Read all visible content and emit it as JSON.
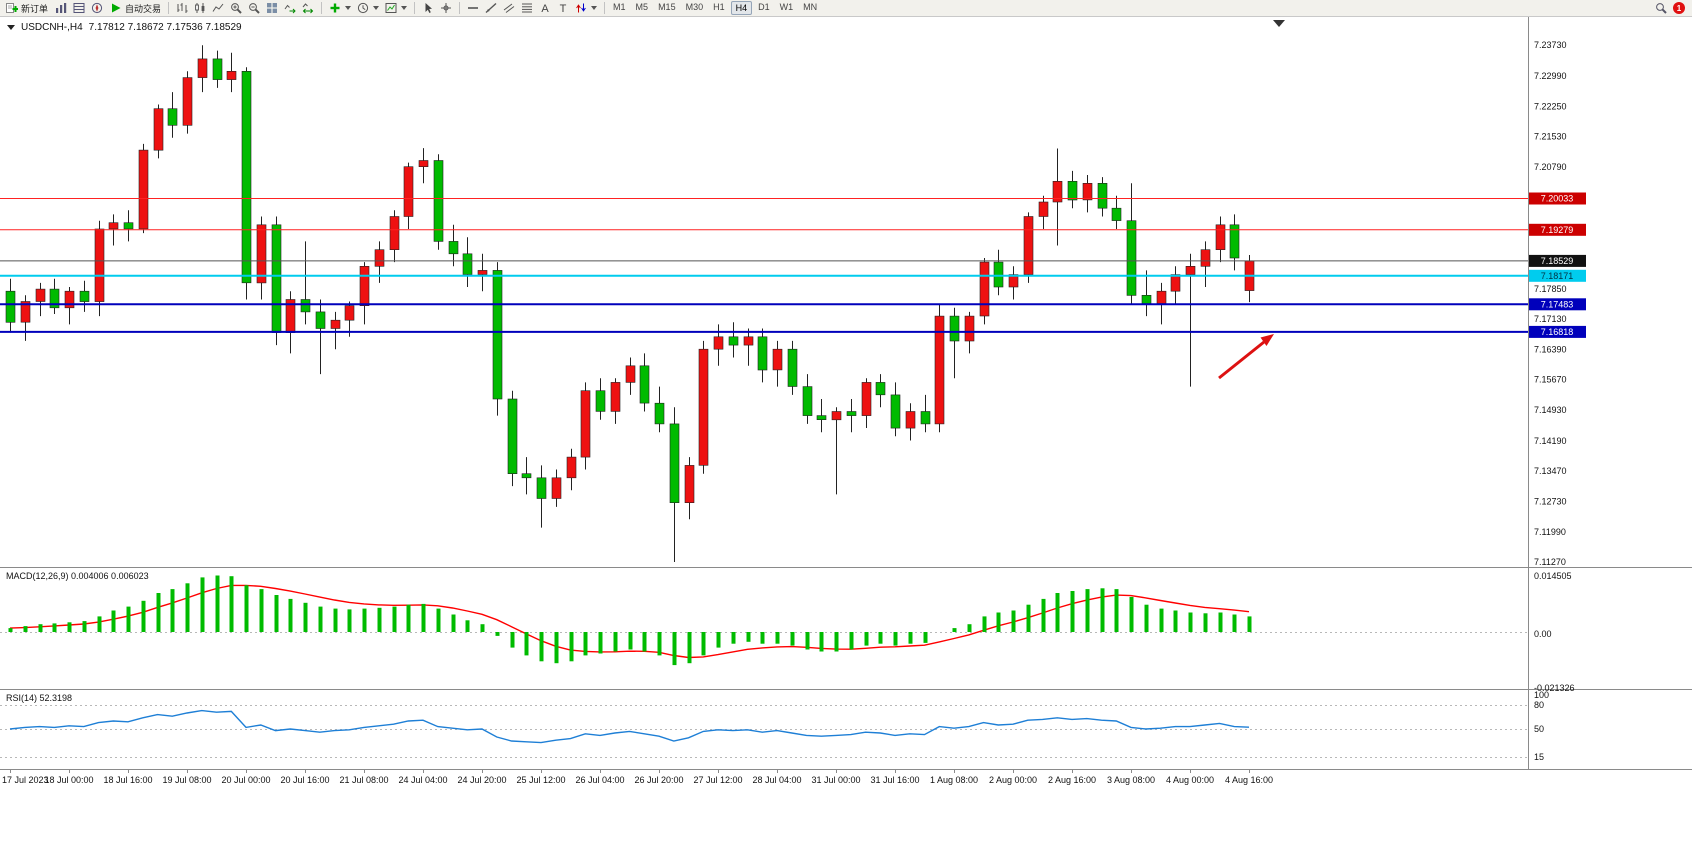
{
  "toolbar": {
    "new_order": {
      "label": "新订单"
    },
    "autotrading": {
      "label": "自动交易"
    },
    "left_icons": [
      "market-watch",
      "data-window",
      "navigator"
    ],
    "chart_icons": [
      "bar-chart",
      "candle-chart",
      "line-chart",
      "zoom-in",
      "zoom-out",
      "tile-windows",
      "auto-scroll",
      "chart-shift"
    ],
    "insert_icons": [
      "indicators",
      "periods",
      "templates"
    ],
    "cursor_icons": [
      "cursor",
      "crosshair"
    ],
    "draw_icons": [
      "hline",
      "trendline",
      "equidistant-channel",
      "fibonacci",
      "text",
      "text-label",
      "arrows"
    ],
    "with_caret": [
      "indicators",
      "periods",
      "templates",
      "arrows"
    ],
    "timeframes": [
      "M1",
      "M5",
      "M15",
      "M30",
      "H1",
      "H4",
      "D1",
      "W1",
      "MN"
    ],
    "active_timeframe": "H4",
    "right": {
      "notification_count": "1"
    }
  },
  "chart": {
    "title_symbol": "USDCNH-,H4",
    "title_ohlc": "7.17812 7.18672 7.17536 7.18529",
    "macd_label": "MACD(12,26,9) 0.004006 0.006023",
    "rsi_label": "RSI(14) 52.3198",
    "price_axis_labels": [
      "7.23730",
      "7.22990",
      "7.22250",
      "7.21530",
      "7.20790",
      "7.17850",
      "7.17130",
      "7.16390",
      "7.15670",
      "7.14930",
      "7.14190",
      "7.13470",
      "7.12730",
      "7.11990",
      "7.11270"
    ],
    "macd_axis_labels": [
      "0.014505",
      "0.00",
      "-0.021326"
    ],
    "rsi_axis_labels": [
      "100",
      "80",
      "50",
      "15"
    ],
    "hlines": [
      {
        "price": 7.20033,
        "label": "7.20033",
        "color": "#ff2222",
        "width": 1,
        "badge_bg": "#cc0000",
        "badge_fg": "#ffffff"
      },
      {
        "price": 7.19279,
        "label": "7.19279",
        "color": "#ff2222",
        "width": 1,
        "badge_bg": "#cc0000",
        "badge_fg": "#ffffff"
      },
      {
        "price": 7.18529,
        "label": "7.18529",
        "color": "#555555",
        "width": 1,
        "badge_bg": "#111111",
        "badge_fg": "#ffffff"
      },
      {
        "price": 7.18171,
        "label": "7.18171",
        "color": "#00ccee",
        "width": 2,
        "badge_bg": "#00ccee",
        "badge_fg": "#003344"
      },
      {
        "price": 7.17483,
        "label": "7.17483",
        "color": "#0000bb",
        "width": 2,
        "badge_bg": "#0000bb",
        "badge_fg": "#ffffff"
      },
      {
        "price": 7.16818,
        "label": "7.16818",
        "color": "#0000bb",
        "width": 2,
        "badge_bg": "#0000bb",
        "badge_fg": "#ffffff"
      }
    ],
    "time_labels": [
      "17 Jul 2023",
      "18 Jul 00:00",
      "18 Jul 16:00",
      "19 Jul 08:00",
      "20 Jul 00:00",
      "20 Jul 16:00",
      "21 Jul 08:00",
      "24 Jul 04:00",
      "24 Jul 20:00",
      "25 Jul 12:00",
      "26 Jul 04:00",
      "26 Jul 20:00",
      "27 Jul 12:00",
      "28 Jul 04:00",
      "31 Jul 00:00",
      "31 Jul 16:00",
      "1 Aug 08:00",
      "2 Aug 00:00",
      "2 Aug 16:00",
      "3 Aug 08:00",
      "4 Aug 00:00",
      "4 Aug 16:00"
    ],
    "colors": {
      "bull": "#ee1111",
      "bear": "#00bb00",
      "wick": "#222222",
      "macd_hist": "#00bb00",
      "macd_signal": "#ff0000",
      "rsi_line": "#1e7fd6",
      "arrow": "#dd1111",
      "grid_dash": "#b8b8b8",
      "separator": "#8a8a8a",
      "axis_text": "#111111"
    }
  },
  "chart_data": {
    "type": "candlestick",
    "symbol": "USDCNH",
    "timeframe": "H4",
    "title": "USDCNH-,H4",
    "ohlc_current": {
      "open": 7.17812,
      "high": 7.18672,
      "low": 7.17536,
      "close": 7.18529
    },
    "price_range": [
      7.1115,
      7.2441
    ],
    "macd_range": [
      -0.021326,
      0.014505
    ],
    "rsi_range": [
      0,
      100
    ],
    "rsi_current": 52.3198,
    "macd_current": 0.004006,
    "macd_signal_current": 0.006023,
    "candles": [
      [
        7.178,
        7.181,
        7.168,
        7.1705
      ],
      [
        7.1705,
        7.177,
        7.166,
        7.1755
      ],
      [
        7.1755,
        7.18,
        7.172,
        7.1785
      ],
      [
        7.1785,
        7.181,
        7.1725,
        7.174
      ],
      [
        7.174,
        7.179,
        7.17,
        7.178
      ],
      [
        7.178,
        7.1805,
        7.173,
        7.1755
      ],
      [
        7.1755,
        7.195,
        7.172,
        7.193
      ],
      [
        7.193,
        7.1965,
        7.189,
        7.1945
      ],
      [
        7.1945,
        7.1975,
        7.19,
        7.193
      ],
      [
        7.193,
        7.2135,
        7.192,
        7.212
      ],
      [
        7.212,
        7.223,
        7.21,
        7.222
      ],
      [
        7.222,
        7.226,
        7.215,
        7.218
      ],
      [
        7.218,
        7.231,
        7.216,
        7.2295
      ],
      [
        7.2295,
        7.2373,
        7.226,
        7.234
      ],
      [
        7.234,
        7.236,
        7.227,
        7.229
      ],
      [
        7.229,
        7.2355,
        7.226,
        7.231
      ],
      [
        7.231,
        7.232,
        7.176,
        7.18
      ],
      [
        7.18,
        7.196,
        7.176,
        7.194
      ],
      [
        7.194,
        7.196,
        7.165,
        7.168
      ],
      [
        7.168,
        7.178,
        7.163,
        7.176
      ],
      [
        7.176,
        7.19,
        7.17,
        7.173
      ],
      [
        7.173,
        7.176,
        7.158,
        7.169
      ],
      [
        7.169,
        7.173,
        7.164,
        7.171
      ],
      [
        7.171,
        7.1755,
        7.167,
        7.1745
      ],
      [
        7.1745,
        7.185,
        7.17,
        7.184
      ],
      [
        7.184,
        7.19,
        7.18,
        7.188
      ],
      [
        7.188,
        7.1975,
        7.185,
        7.196
      ],
      [
        7.196,
        7.209,
        7.193,
        7.208
      ],
      [
        7.208,
        7.2125,
        7.204,
        7.2095
      ],
      [
        7.2095,
        7.211,
        7.188,
        7.19
      ],
      [
        7.19,
        7.194,
        7.184,
        7.187
      ],
      [
        7.187,
        7.191,
        7.179,
        7.182
      ],
      [
        7.182,
        7.187,
        7.178,
        7.183
      ],
      [
        7.183,
        7.185,
        7.148,
        7.152
      ],
      [
        7.152,
        7.154,
        7.131,
        7.134
      ],
      [
        7.134,
        7.138,
        7.129,
        7.133
      ],
      [
        7.133,
        7.136,
        7.121,
        7.128
      ],
      [
        7.128,
        7.135,
        7.126,
        7.133
      ],
      [
        7.133,
        7.14,
        7.13,
        7.138
      ],
      [
        7.138,
        7.156,
        7.135,
        7.154
      ],
      [
        7.154,
        7.157,
        7.147,
        7.149
      ],
      [
        7.149,
        7.157,
        7.146,
        7.156
      ],
      [
        7.156,
        7.162,
        7.153,
        7.16
      ],
      [
        7.16,
        7.163,
        7.149,
        7.151
      ],
      [
        7.151,
        7.155,
        7.144,
        7.146
      ],
      [
        7.146,
        7.15,
        7.1127,
        7.127
      ],
      [
        7.127,
        7.138,
        7.123,
        7.136
      ],
      [
        7.136,
        7.166,
        7.134,
        7.164
      ],
      [
        7.164,
        7.17,
        7.16,
        7.167
      ],
      [
        7.167,
        7.1705,
        7.162,
        7.165
      ],
      [
        7.165,
        7.169,
        7.16,
        7.167
      ],
      [
        7.167,
        7.169,
        7.156,
        7.159
      ],
      [
        7.159,
        7.166,
        7.155,
        7.164
      ],
      [
        7.164,
        7.166,
        7.153,
        7.155
      ],
      [
        7.155,
        7.158,
        7.146,
        7.148
      ],
      [
        7.148,
        7.152,
        7.144,
        7.147
      ],
      [
        7.147,
        7.15,
        7.129,
        7.149
      ],
      [
        7.149,
        7.152,
        7.144,
        7.148
      ],
      [
        7.148,
        7.157,
        7.145,
        7.156
      ],
      [
        7.156,
        7.158,
        7.15,
        7.153
      ],
      [
        7.153,
        7.156,
        7.143,
        7.145
      ],
      [
        7.145,
        7.151,
        7.142,
        7.149
      ],
      [
        7.149,
        7.153,
        7.144,
        7.146
      ],
      [
        7.146,
        7.175,
        7.144,
        7.172
      ],
      [
        7.172,
        7.174,
        7.157,
        7.166
      ],
      [
        7.166,
        7.173,
        7.163,
        7.172
      ],
      [
        7.172,
        7.186,
        7.17,
        7.185
      ],
      [
        7.185,
        7.188,
        7.177,
        7.179
      ],
      [
        7.179,
        7.184,
        7.176,
        7.182
      ],
      [
        7.182,
        7.197,
        7.18,
        7.196
      ],
      [
        7.196,
        7.201,
        7.193,
        7.1995
      ],
      [
        7.1995,
        7.2124,
        7.189,
        7.2045
      ],
      [
        7.2045,
        7.207,
        7.198,
        7.2
      ],
      [
        7.2,
        7.206,
        7.197,
        7.204
      ],
      [
        7.204,
        7.2055,
        7.196,
        7.198
      ],
      [
        7.198,
        7.201,
        7.193,
        7.195
      ],
      [
        7.195,
        7.204,
        7.175,
        7.177
      ],
      [
        7.177,
        7.183,
        7.172,
        7.175
      ],
      [
        7.175,
        7.18,
        7.17,
        7.178
      ],
      [
        7.178,
        7.184,
        7.175,
        7.182
      ],
      [
        7.182,
        7.187,
        7.155,
        7.184
      ],
      [
        7.184,
        7.19,
        7.179,
        7.188
      ],
      [
        7.188,
        7.196,
        7.185,
        7.194
      ],
      [
        7.194,
        7.1965,
        7.183,
        7.186
      ],
      [
        7.17812,
        7.18672,
        7.17536,
        7.18529
      ]
    ],
    "macd_hist": [
      0.001,
      0.0015,
      0.002,
      0.0022,
      0.0025,
      0.0028,
      0.004,
      0.0055,
      0.0065,
      0.008,
      0.01,
      0.011,
      0.0125,
      0.014,
      0.0145,
      0.0143,
      0.012,
      0.011,
      0.0095,
      0.0085,
      0.0075,
      0.0065,
      0.006,
      0.0058,
      0.006,
      0.0062,
      0.0065,
      0.007,
      0.0072,
      0.006,
      0.0045,
      0.003,
      0.002,
      -0.001,
      -0.004,
      -0.006,
      -0.0075,
      -0.008,
      -0.0075,
      -0.006,
      -0.0055,
      -0.005,
      -0.0045,
      -0.005,
      -0.006,
      -0.0085,
      -0.008,
      -0.006,
      -0.004,
      -0.003,
      -0.0025,
      -0.003,
      -0.003,
      -0.0035,
      -0.0045,
      -0.005,
      -0.005,
      -0.0045,
      -0.0035,
      -0.003,
      -0.0035,
      -0.003,
      -0.0028,
      0.0,
      0.001,
      0.002,
      0.004,
      0.005,
      0.0055,
      0.007,
      0.0085,
      0.01,
      0.0105,
      0.011,
      0.0112,
      0.011,
      0.009,
      0.007,
      0.006,
      0.0055,
      0.005,
      0.0048,
      0.005,
      0.0045,
      0.004
    ],
    "rsi": [
      50,
      52,
      53,
      52,
      54,
      53,
      58,
      60,
      59,
      64,
      68,
      66,
      70,
      73,
      71,
      72,
      52,
      55,
      48,
      50,
      48,
      46,
      48,
      49,
      52,
      54,
      56,
      60,
      61,
      53,
      51,
      49,
      50,
      40,
      35,
      34,
      33,
      36,
      38,
      44,
      42,
      45,
      47,
      44,
      41,
      35,
      39,
      47,
      49,
      48,
      49,
      46,
      48,
      45,
      42,
      41,
      42,
      43,
      46,
      45,
      42,
      44,
      43,
      53,
      51,
      53,
      58,
      55,
      56,
      61,
      62,
      64,
      62,
      63,
      61,
      60,
      52,
      50,
      51,
      53,
      53,
      55,
      57,
      53,
      52.3
    ]
  }
}
